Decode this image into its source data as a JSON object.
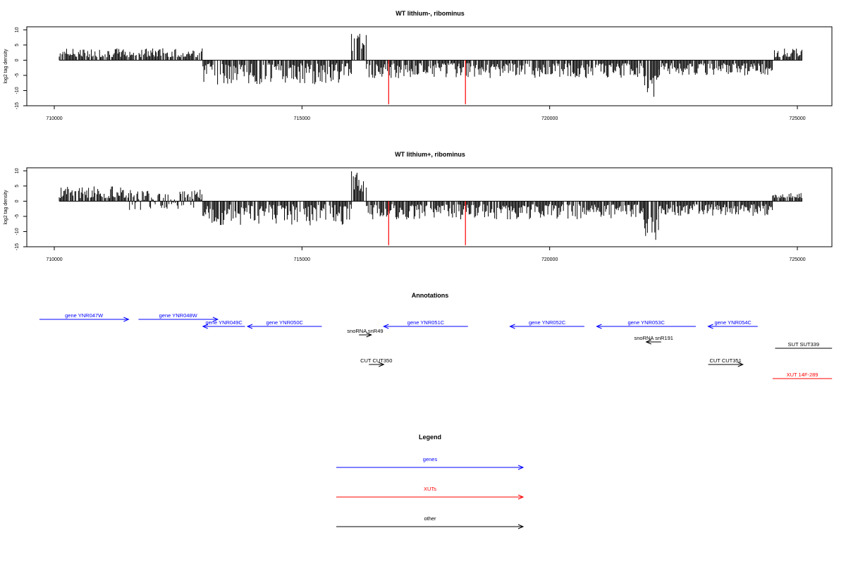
{
  "chart_data": [
    {
      "type": "bar",
      "title": "WT lithium-, ribominus",
      "ylabel": "log2 tag density",
      "xlabel": "",
      "xlim": [
        709500,
        726000
      ],
      "ylim": [
        -15,
        11
      ],
      "xticks": [
        "710000",
        "715000",
        "720000",
        "725000"
      ],
      "xtick_values": [
        710000,
        715000,
        720000,
        725000
      ],
      "yticks": [
        "-15",
        "-10",
        "-5",
        "0",
        "5",
        "10"
      ],
      "ytick_values": [
        -15,
        -10,
        -5,
        0,
        5,
        10
      ],
      "baseline": {
        "from": 710100,
        "to": 725100,
        "color": "#000000"
      },
      "density_profile": [
        {
          "from": 710100,
          "to": 713000,
          "min": 1,
          "max": 4,
          "color": "#000000"
        },
        {
          "from": 713000,
          "to": 716000,
          "min": -8,
          "max": -1,
          "color": "#000000"
        },
        {
          "from": 716000,
          "to": 716300,
          "min": 3,
          "max": 9,
          "color": "#000000"
        },
        {
          "from": 716300,
          "to": 721900,
          "min": -6,
          "max": -1,
          "color": "#000000"
        },
        {
          "from": 721900,
          "to": 722200,
          "min": -13,
          "max": -5,
          "color": "#000000"
        },
        {
          "from": 722200,
          "to": 724500,
          "min": -5,
          "max": -1,
          "color": "#000000"
        },
        {
          "from": 724500,
          "to": 725100,
          "min": 1,
          "max": 4,
          "color": "#000000"
        }
      ],
      "highlight_bars": [
        {
          "x": 716750,
          "value": -14.5,
          "color": "#ff0000"
        },
        {
          "x": 718300,
          "value": -14.5,
          "color": "#ff0000"
        }
      ],
      "grid": false
    },
    {
      "type": "bar",
      "title": "WT lithium+, ribominus",
      "ylabel": "log2 tag density",
      "xlabel": "",
      "xlim": [
        709500,
        726000
      ],
      "ylim": [
        -15,
        11
      ],
      "xticks": [
        "710000",
        "715000",
        "720000",
        "725000"
      ],
      "xtick_values": [
        710000,
        715000,
        720000,
        725000
      ],
      "yticks": [
        "-15",
        "-10",
        "-5",
        "0",
        "5",
        "10"
      ],
      "ytick_values": [
        -15,
        -10,
        -5,
        0,
        5,
        10
      ],
      "baseline": {
        "from": 710100,
        "to": 725100,
        "color": "#000000"
      },
      "density_profile": [
        {
          "from": 710100,
          "to": 711500,
          "min": 1,
          "max": 5,
          "color": "#000000"
        },
        {
          "from": 711500,
          "to": 713000,
          "min": -3,
          "max": 4,
          "color": "#000000"
        },
        {
          "from": 713000,
          "to": 716000,
          "min": -8,
          "max": -1,
          "color": "#000000"
        },
        {
          "from": 716000,
          "to": 716300,
          "min": 3,
          "max": 10,
          "color": "#000000"
        },
        {
          "from": 716300,
          "to": 721900,
          "min": -6,
          "max": -1,
          "color": "#000000"
        },
        {
          "from": 721900,
          "to": 722200,
          "min": -14,
          "max": -5,
          "color": "#000000"
        },
        {
          "from": 722200,
          "to": 724500,
          "min": -5,
          "max": -1,
          "color": "#000000"
        },
        {
          "from": 724500,
          "to": 725100,
          "min": 1,
          "max": 3,
          "color": "#000000"
        }
      ],
      "highlight_bars": [
        {
          "x": 716750,
          "value": -14.5,
          "color": "#ff0000"
        },
        {
          "x": 718300,
          "value": -14.5,
          "color": "#ff0000"
        }
      ],
      "grid": false
    }
  ],
  "annotations": {
    "title": "Annotations",
    "features": [
      {
        "label": "gene YNR047W",
        "start": 709700,
        "end": 711500,
        "strand": "+",
        "track": 0,
        "color": "#0000ff"
      },
      {
        "label": "gene YNR048W",
        "start": 711700,
        "end": 713300,
        "strand": "+",
        "track": 0,
        "color": "#0000ff"
      },
      {
        "label": "gene YNR049C",
        "start": 713000,
        "end": 713850,
        "strand": "-",
        "track": 1,
        "color": "#0000ff"
      },
      {
        "label": "gene YNR050C",
        "start": 713900,
        "end": 715400,
        "strand": "-",
        "track": 1,
        "color": "#0000ff"
      },
      {
        "label": "gene YNR051C",
        "start": 716650,
        "end": 718350,
        "strand": "-",
        "track": 1,
        "color": "#0000ff"
      },
      {
        "label": "gene YNR052C",
        "start": 719200,
        "end": 720700,
        "strand": "-",
        "track": 1,
        "color": "#0000ff"
      },
      {
        "label": "gene YNR053C",
        "start": 720950,
        "end": 722950,
        "strand": "-",
        "track": 1,
        "color": "#0000ff"
      },
      {
        "label": "gene YNR054C",
        "start": 723200,
        "end": 724200,
        "strand": "-",
        "track": 1,
        "color": "#0000ff"
      },
      {
        "label": "snoRNA snR49",
        "start": 716150,
        "end": 716400,
        "strand": "+",
        "track": 2,
        "color": "#000000"
      },
      {
        "label": "snoRNA snR191",
        "start": 721950,
        "end": 722250,
        "strand": "-",
        "track": 2.5,
        "color": "#000000"
      },
      {
        "label": "SUT SUT339",
        "start": 724550,
        "end": 725700,
        "strand": "none",
        "track": 3,
        "color": "#000000"
      },
      {
        "label": "CUT CUT350",
        "start": 716350,
        "end": 716650,
        "strand": "+",
        "track": 4,
        "color": "#000000"
      },
      {
        "label": "CUT CUT351",
        "start": 723200,
        "end": 723900,
        "strand": "+",
        "track": 4,
        "color": "#000000"
      },
      {
        "label": "XUT 14F-289",
        "start": 724500,
        "end": 725700,
        "strand": "none",
        "track": 5,
        "color": "#ff0000"
      }
    ]
  },
  "legend": {
    "title": "Legend",
    "items": [
      {
        "label": "genes",
        "color": "#0000ff"
      },
      {
        "label": "XUTs",
        "color": "#ff0000"
      },
      {
        "label": "other",
        "color": "#000000"
      }
    ]
  }
}
